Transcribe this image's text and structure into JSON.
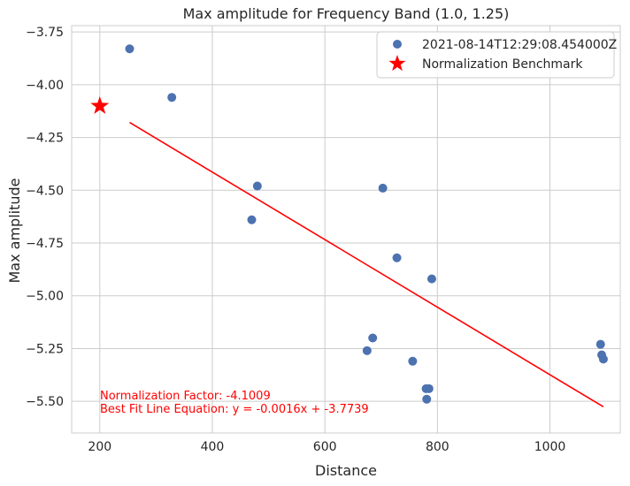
{
  "chart_data": {
    "type": "scatter",
    "title": "Max amplitude for Frequency Band (1.0, 1.25)",
    "xlabel": "Distance",
    "ylabel": "Max amplitude",
    "xlim": [
      150,
      1125
    ],
    "ylim": [
      -5.65,
      -3.72
    ],
    "xticks": [
      200,
      400,
      600,
      800,
      1000
    ],
    "xtick_labels": [
      "200",
      "400",
      "600",
      "800",
      "1000"
    ],
    "yticks": [
      -3.75,
      -4.0,
      -4.25,
      -4.5,
      -4.75,
      -5.0,
      -5.25,
      -5.5
    ],
    "ytick_labels": [
      "−3.75",
      "−4.00",
      "−4.25",
      "−4.50",
      "−4.75",
      "−5.00",
      "−5.25",
      "−5.50"
    ],
    "grid": true,
    "legend_position": "top-right",
    "series": [
      {
        "name": "2021-08-14T12:29:08.454000Z",
        "kind": "scatter",
        "color": "#4c72b0",
        "points": [
          [
            253,
            -3.83
          ],
          [
            328,
            -4.06
          ],
          [
            480,
            -4.48
          ],
          [
            470,
            -4.64
          ],
          [
            703,
            -4.49
          ],
          [
            728,
            -4.82
          ],
          [
            790,
            -4.92
          ],
          [
            685,
            -5.2
          ],
          [
            675,
            -5.26
          ],
          [
            756,
            -5.31
          ],
          [
            780,
            -5.44
          ],
          [
            785,
            -5.44
          ],
          [
            781,
            -5.49
          ],
          [
            1090,
            -5.23
          ],
          [
            1092,
            -5.28
          ],
          [
            1095,
            -5.3
          ]
        ]
      },
      {
        "name": "Normalization Benchmark",
        "kind": "marker",
        "color": "#ff0000",
        "points": [
          [
            200,
            -4.1009
          ]
        ]
      }
    ],
    "fit_line": {
      "color": "#ff0000",
      "x": [
        253,
        1095
      ],
      "y": [
        -4.1787,
        -5.5259
      ]
    },
    "annotations": [
      "Normalization Factor: -4.1009",
      "Best Fit Line Equation: y = -0.0016x + -3.7739"
    ]
  }
}
